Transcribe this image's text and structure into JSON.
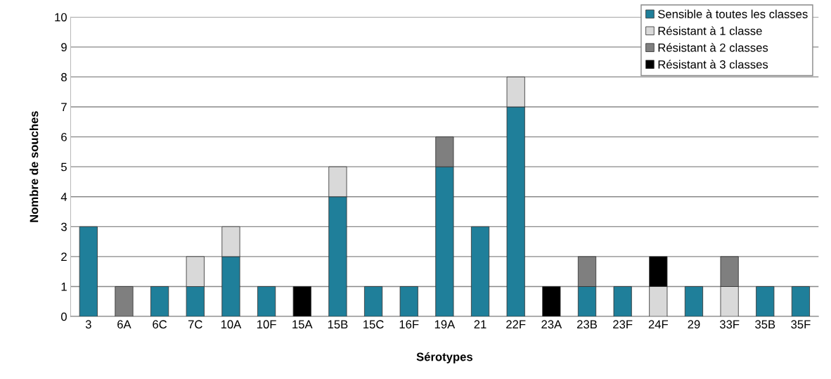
{
  "chart_data": {
    "type": "bar",
    "stacked": true,
    "xlabel": "Sérotypes",
    "ylabel": "Nombre de souches",
    "categories": [
      "3",
      "6A",
      "6C",
      "7C",
      "10A",
      "10F",
      "15A",
      "15B",
      "15C",
      "16F",
      "19A",
      "21",
      "22F",
      "23A",
      "23B",
      "23F",
      "24F",
      "29",
      "33F",
      "35B",
      "35F"
    ],
    "series": [
      {
        "name": "Sensible à toutes les classes",
        "color": "#1f7f9a",
        "values": [
          3,
          0,
          1,
          1,
          2,
          1,
          0,
          4,
          1,
          1,
          5,
          3,
          7,
          0,
          1,
          1,
          0,
          1,
          0,
          1,
          1
        ]
      },
      {
        "name": "Résistant à 1 classe",
        "color": "#d9d9d9",
        "values": [
          0,
          0,
          0,
          1,
          1,
          0,
          0,
          1,
          0,
          0,
          0,
          0,
          1,
          0,
          0,
          0,
          1,
          0,
          1,
          0,
          0
        ]
      },
      {
        "name": "Résistant à 2 classes",
        "color": "#7f7f7f",
        "values": [
          0,
          1,
          0,
          0,
          0,
          0,
          0,
          0,
          0,
          0,
          1,
          0,
          0,
          0,
          1,
          0,
          0,
          0,
          1,
          0,
          0
        ]
      },
      {
        "name": "Résistant à 3 classes",
        "color": "#000000",
        "values": [
          0,
          0,
          0,
          0,
          0,
          0,
          1,
          0,
          0,
          0,
          0,
          0,
          0,
          1,
          0,
          0,
          1,
          0,
          0,
          0,
          0
        ]
      }
    ],
    "ylim": [
      0,
      10
    ],
    "yticks": [
      0,
      1,
      2,
      3,
      4,
      5,
      6,
      7,
      8,
      9,
      10
    ],
    "grid": "y",
    "legend": "top right"
  }
}
